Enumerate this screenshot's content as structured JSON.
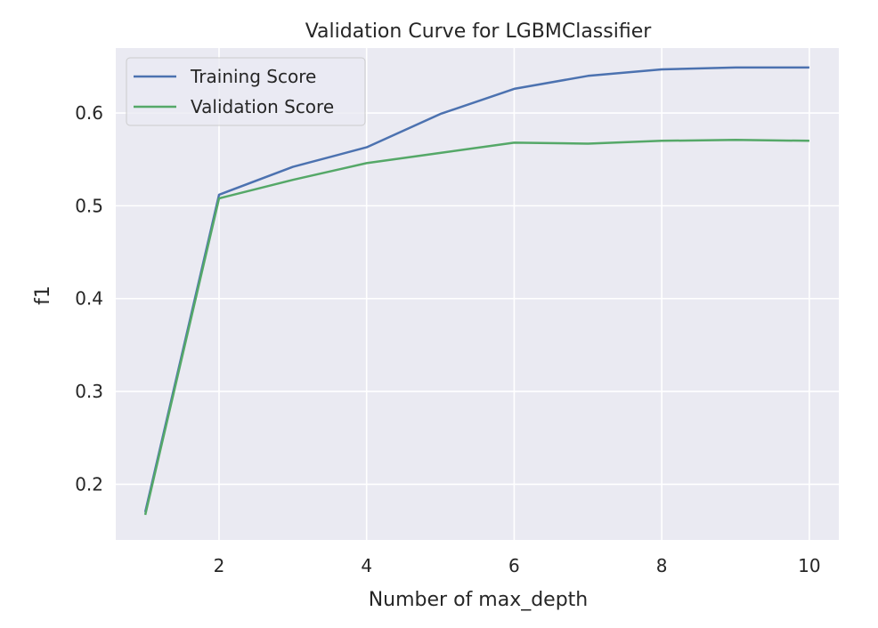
{
  "chart_data": {
    "type": "line",
    "title": "Validation Curve for LGBMClassifier",
    "xlabel": "Number of max_depth",
    "ylabel": "f1",
    "xlim": [
      0.6,
      10.4
    ],
    "ylim": [
      0.14,
      0.67
    ],
    "xticks": [
      2,
      4,
      6,
      8,
      10
    ],
    "yticks": [
      0.2,
      0.3,
      0.4,
      0.5,
      0.6
    ],
    "ytick_labels": [
      "0.2",
      "0.3",
      "0.4",
      "0.5",
      "0.6"
    ],
    "grid": true,
    "legend_position": "top-left",
    "x": [
      1,
      2,
      3,
      4,
      5,
      6,
      7,
      8,
      9,
      10
    ],
    "series": [
      {
        "name": "Training Score",
        "color": "#4c72b0",
        "values": [
          0.17,
          0.512,
          0.542,
          0.563,
          0.599,
          0.626,
          0.64,
          0.647,
          0.649,
          0.649
        ]
      },
      {
        "name": "Validation Score",
        "color": "#55a868",
        "values": [
          0.167,
          0.508,
          0.528,
          0.546,
          0.557,
          0.568,
          0.567,
          0.57,
          0.571,
          0.57
        ]
      }
    ],
    "background_color": "#eaeaf2",
    "grid_color": "#ffffff"
  }
}
